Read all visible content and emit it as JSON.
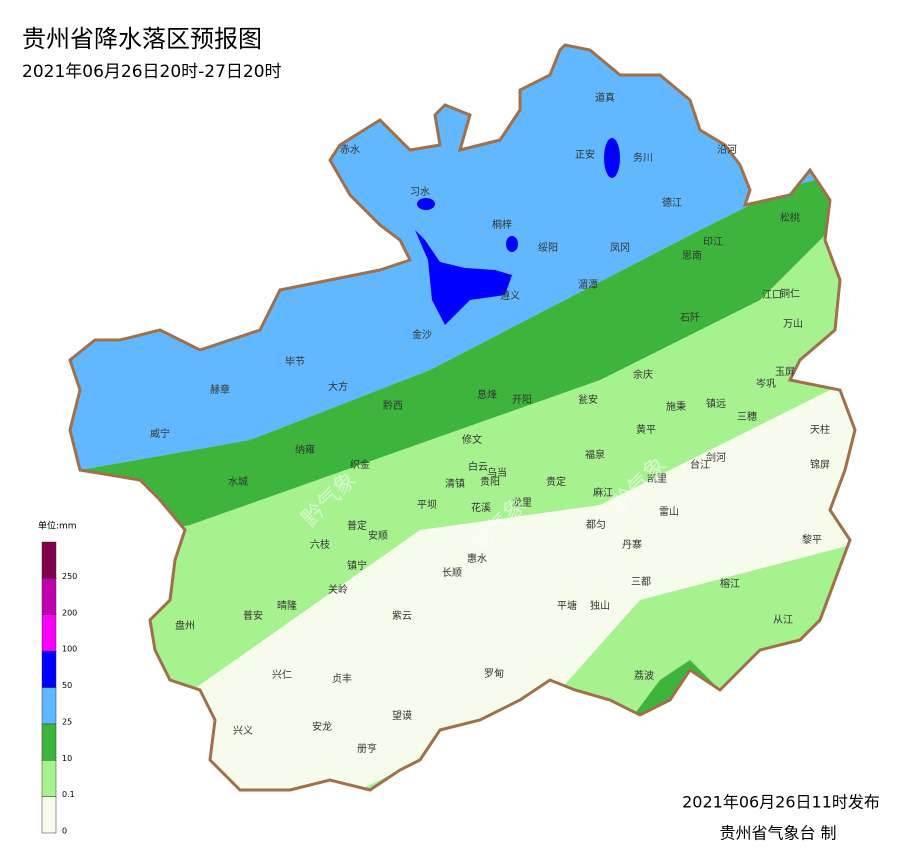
{
  "header": {
    "title": "贵州省降水落区预报图",
    "subtitle": "2021年06月26日20时-27日20时"
  },
  "legend": {
    "unit": "单位:mm",
    "breaks": [
      0,
      0.1,
      10,
      25,
      50,
      100,
      200,
      250
    ],
    "colors": [
      "#f6fbec",
      "#a6f28f",
      "#3db53d",
      "#61b8ff",
      "#0000fe",
      "#fa00fa",
      "#c000b0",
      "#80004a"
    ]
  },
  "cities": [
    "赤水",
    "习水",
    "道真",
    "正安",
    "务川",
    "沿河",
    "桐梓",
    "绥阳",
    "凤冈",
    "德江",
    "印江",
    "思南",
    "松桃",
    "湄潭",
    "遵义",
    "江口",
    "铜仁",
    "石阡",
    "万山",
    "金沙",
    "毕节",
    "大方",
    "赫章",
    "息烽",
    "开阳",
    "瓮安",
    "余庆",
    "施秉",
    "镇远",
    "岑巩",
    "玉屏",
    "三穗",
    "天柱",
    "威宁",
    "黔西",
    "修文",
    "黄平",
    "台江",
    "剑河",
    "锦屏",
    "纳雍",
    "织金",
    "福泉",
    "白云",
    "乌当",
    "贵阳",
    "清镇",
    "贵定",
    "凯里",
    "麻江",
    "水城",
    "平坝",
    "花溪",
    "龙里",
    "都匀",
    "雷山",
    "普定",
    "安顺",
    "六枝",
    "丹寨",
    "黎平",
    "惠水",
    "镇宁",
    "长顺",
    "关岭",
    "三都",
    "榕江",
    "平塘",
    "独山",
    "晴隆",
    "普安",
    "紫云",
    "盘州",
    "从江",
    "兴仁",
    "贞丰",
    "罗甸",
    "荔波",
    "兴义",
    "安龙",
    "望谟",
    "册亨"
  ],
  "watermarks": [
    "黔气象",
    "黔气象",
    "黔气象"
  ],
  "footer": {
    "issued": "2021年06月26日11时发布",
    "issuer": "贵州省气象台 制"
  }
}
